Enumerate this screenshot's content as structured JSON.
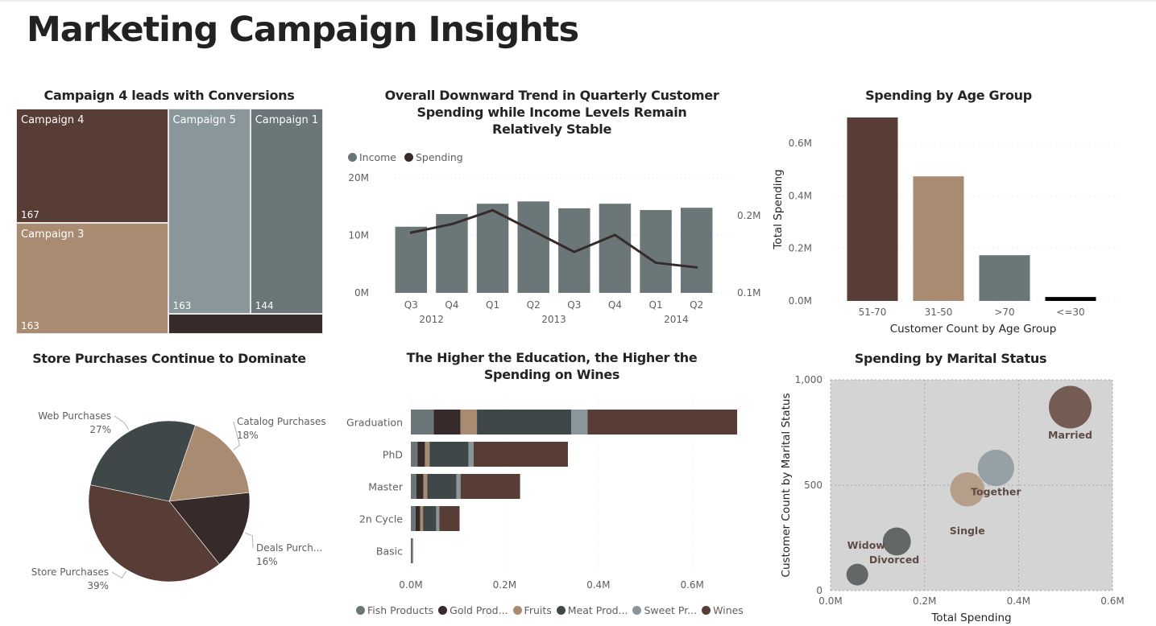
{
  "page": {
    "title": "Marketing Campaign Insights"
  },
  "colors": {
    "dark_brown": "#573d35",
    "tan": "#a88b71",
    "light_slate": "#89979a",
    "slate": "#6b7679",
    "charcoal": "#3f4749",
    "espresso": "#362b2a",
    "black": "#000000",
    "scatter_bg": "#d4d4d4"
  },
  "chart_data": [
    {
      "id": "treemap",
      "type": "treemap",
      "title": "Campaign 4 leads with Conversions",
      "items": [
        {
          "label": "Campaign 4",
          "value": 167,
          "value_label": "167",
          "color": "#573d35"
        },
        {
          "label": "Campaign 3",
          "value": 163,
          "value_label": "163",
          "color": "#a88b71"
        },
        {
          "label": "Campaign 5",
          "value": 163,
          "value_label": "163",
          "color": "#89979a"
        },
        {
          "label": "Campaign 1",
          "value": 144,
          "value_label": "144",
          "color": "#6b7679"
        },
        {
          "label": "",
          "value": 30,
          "value_label": "",
          "color": "#362b2a"
        }
      ]
    },
    {
      "id": "combo",
      "type": "bar+line",
      "title": "Overall Downward Trend in Quarterly Customer Spending while Income Levels Remain Relatively Stable",
      "categories": [
        "Q3",
        "Q4",
        "Q1",
        "Q2",
        "Q3",
        "Q4",
        "Q1",
        "Q2"
      ],
      "years": [
        {
          "label": "2012",
          "span": 2
        },
        {
          "label": "2013",
          "span": 4
        },
        {
          "label": "2014",
          "span": 2
        }
      ],
      "series": [
        {
          "name": "Income",
          "kind": "bar",
          "axis": "left",
          "color": "#6b7679",
          "values": [
            11.5,
            13.7,
            15.5,
            15.9,
            14.7,
            15.5,
            14.4,
            14.8
          ]
        },
        {
          "name": "Spending",
          "kind": "line",
          "axis": "right",
          "color": "#362b2a",
          "values": [
            0.178,
            0.189,
            0.207,
            0.18,
            0.153,
            0.175,
            0.139,
            0.133
          ]
        }
      ],
      "left_axis": {
        "ylim": [
          0,
          20
        ],
        "ticks": [
          0,
          10,
          20
        ],
        "tick_labels": [
          "0M",
          "10M",
          "20M"
        ]
      },
      "right_axis": {
        "ylim": [
          0.1,
          0.2
        ],
        "ticks": [
          0.1,
          0.2
        ],
        "tick_labels": [
          "0.1M",
          "0.2M"
        ]
      },
      "legend": "top-left",
      "grid": true
    },
    {
      "id": "age",
      "type": "bar",
      "title": "Spending by Age Group",
      "categories": [
        "51-70",
        "31-50",
        ">70",
        "<=30"
      ],
      "values": [
        0.698,
        0.474,
        0.174,
        0.015
      ],
      "colors": [
        "#573d35",
        "#a88b71",
        "#6b7679",
        "#000000"
      ],
      "xlabel": "Customer Count by Age Group",
      "ylabel": "Total Spending",
      "ylim": [
        0,
        0.7
      ],
      "ticks": [
        0,
        0.2,
        0.4,
        0.6
      ],
      "tick_labels": [
        "0.0M",
        "0.2M",
        "0.4M",
        "0.6M"
      ],
      "grid": true
    },
    {
      "id": "pie",
      "type": "pie",
      "title": "Store Purchases Continue to Dominate",
      "slices": [
        {
          "label": "Catalog Purchases",
          "value": 18,
          "pct_label": "18%",
          "color": "#a88b71"
        },
        {
          "label": "Deals Purch...",
          "value": 16,
          "pct_label": "16%",
          "color": "#362b2a"
        },
        {
          "label": "Store Purchases",
          "value": 39,
          "pct_label": "39%",
          "color": "#573d35"
        },
        {
          "label": "Web Purchases",
          "value": 27,
          "pct_label": "27%",
          "color": "#3f4749"
        }
      ]
    },
    {
      "id": "stacked",
      "type": "bar",
      "orientation": "horizontal-stacked",
      "title": "The Higher the Education, the Higher the Spending on Wines",
      "categories": [
        "Graduation",
        "PhD",
        "Master",
        "2n Cycle",
        "Basic"
      ],
      "series": [
        {
          "name": "Fish Products",
          "legend_label": "Fish Products",
          "color": "#6b7679",
          "values": [
            0.049,
            0.014,
            0.012,
            0.01,
            0.001
          ]
        },
        {
          "name": "Gold Products",
          "legend_label": "Gold Prod...",
          "color": "#362b2a",
          "values": [
            0.057,
            0.016,
            0.015,
            0.01,
            0.001
          ]
        },
        {
          "name": "Fruits",
          "legend_label": "Fruits",
          "color": "#a88b71",
          "values": [
            0.035,
            0.01,
            0.008,
            0.006,
            0.0005
          ]
        },
        {
          "name": "Meat Products",
          "legend_label": "Meat Prod...",
          "color": "#3f4749",
          "values": [
            0.201,
            0.083,
            0.062,
            0.028,
            0.0005
          ]
        },
        {
          "name": "Sweet Products",
          "legend_label": "Sweet Pr...",
          "color": "#89979a",
          "values": [
            0.035,
            0.011,
            0.009,
            0.007,
            0.0005
          ]
        },
        {
          "name": "Wines",
          "legend_label": "Wines",
          "color": "#573d35",
          "values": [
            0.319,
            0.201,
            0.127,
            0.043,
            0.0005
          ]
        }
      ],
      "xlim": [
        0,
        0.7
      ],
      "ticks": [
        0,
        0.2,
        0.4,
        0.6
      ],
      "tick_labels": [
        "0.0M",
        "0.2M",
        "0.4M",
        "0.6M"
      ],
      "legend": "bottom",
      "grid": true
    },
    {
      "id": "scatter",
      "type": "scatter",
      "title": "Spending by Marital Status",
      "xlabel": "Total Spending",
      "ylabel": "Customer Count by Marital Status",
      "xlim": [
        0,
        0.6
      ],
      "ylim": [
        0,
        1000
      ],
      "x_ticks": [
        0,
        0.2,
        0.4,
        0.6
      ],
      "x_tick_labels": [
        "0.0M",
        "0.2M",
        "0.4M",
        "0.6M"
      ],
      "y_ticks": [
        0,
        500,
        1000
      ],
      "y_tick_labels": [
        "0",
        "500",
        "1,000"
      ],
      "points": [
        {
          "label": "Married",
          "x": 0.51,
          "y": 870,
          "size": 3,
          "color": "#6b5049",
          "show_label": true
        },
        {
          "label": "Together",
          "x": 0.352,
          "y": 582,
          "size": 2.4,
          "color": "#8f9c9f",
          "show_label": true
        },
        {
          "label": "Single",
          "x": 0.291,
          "y": 480,
          "size": 2.2,
          "color": "#b39a83",
          "show_label": true
        },
        {
          "label": "Divorced",
          "x": 0.141,
          "y": 233,
          "size": 1.6,
          "color": "#585d5e",
          "show_label": true
        },
        {
          "label": "Widow",
          "x": 0.057,
          "y": 76,
          "size": 1,
          "color": "#585d5e",
          "show_label": true
        }
      ],
      "grid": true
    }
  ]
}
